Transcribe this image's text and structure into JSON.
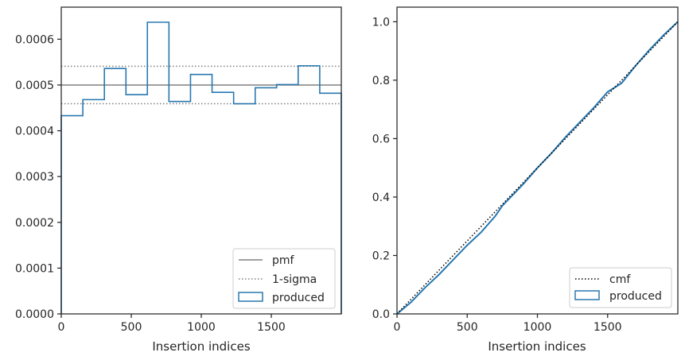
{
  "chart_data": [
    {
      "type": "histogram",
      "xlabel": "Insertion indices",
      "ylabel": "",
      "xlim": [
        0,
        2000
      ],
      "ylim": [
        0,
        0.00067
      ],
      "xticks": [
        0,
        500,
        1000,
        1500
      ],
      "yticks": [
        0,
        0.0001,
        0.0002,
        0.0003,
        0.0004,
        0.0005,
        0.0006
      ],
      "ytick_labels": [
        "0.0000",
        "0.0001",
        "0.0002",
        "0.0003",
        "0.0004",
        "0.0005",
        "0.0006"
      ],
      "grid": false,
      "legend_position": "lower-right",
      "pmf": {
        "label": "pmf",
        "value": 0.0005,
        "color": "#808080"
      },
      "sigma": {
        "label": "1-sigma",
        "values": [
          0.000459,
          0.000541
        ],
        "color": "#808080"
      },
      "produced": {
        "label": "produced",
        "color": "#2878b0",
        "bin_edges": [
          0,
          154,
          308,
          462,
          615,
          769,
          923,
          1077,
          1231,
          1385,
          1538,
          1692,
          1846,
          2000
        ],
        "values": [
          0.000433,
          0.000468,
          0.000536,
          0.000479,
          0.000637,
          0.000464,
          0.000523,
          0.000484,
          0.000459,
          0.000494,
          0.000501,
          0.000542,
          0.000482
        ]
      }
    },
    {
      "type": "line",
      "xlabel": "Insertion indices",
      "ylabel": "",
      "xlim": [
        0,
        2000
      ],
      "ylim": [
        0,
        1.05
      ],
      "xticks": [
        0,
        500,
        1000,
        1500
      ],
      "yticks": [
        0,
        0.2,
        0.4,
        0.6,
        0.8,
        1.0
      ],
      "ytick_labels": [
        "0.0",
        "0.2",
        "0.4",
        "0.6",
        "0.8",
        "1.0"
      ],
      "grid": false,
      "legend_position": "lower-right",
      "cmf": {
        "label": "cmf",
        "x": [
          0,
          2000
        ],
        "y": [
          0,
          1
        ],
        "color": "#000000"
      },
      "produced": {
        "label": "produced",
        "color": "#2878b0",
        "x": [
          0,
          100,
          200,
          300,
          400,
          500,
          600,
          700,
          750,
          800,
          900,
          1000,
          1100,
          1200,
          1300,
          1400,
          1500,
          1550,
          1600,
          1650,
          1700,
          1800,
          1900,
          2000
        ],
        "y": [
          0,
          0.04,
          0.09,
          0.135,
          0.185,
          0.235,
          0.28,
          0.335,
          0.37,
          0.395,
          0.445,
          0.5,
          0.55,
          0.605,
          0.655,
          0.705,
          0.76,
          0.775,
          0.79,
          0.82,
          0.85,
          0.905,
          0.955,
          1.0
        ]
      }
    }
  ]
}
